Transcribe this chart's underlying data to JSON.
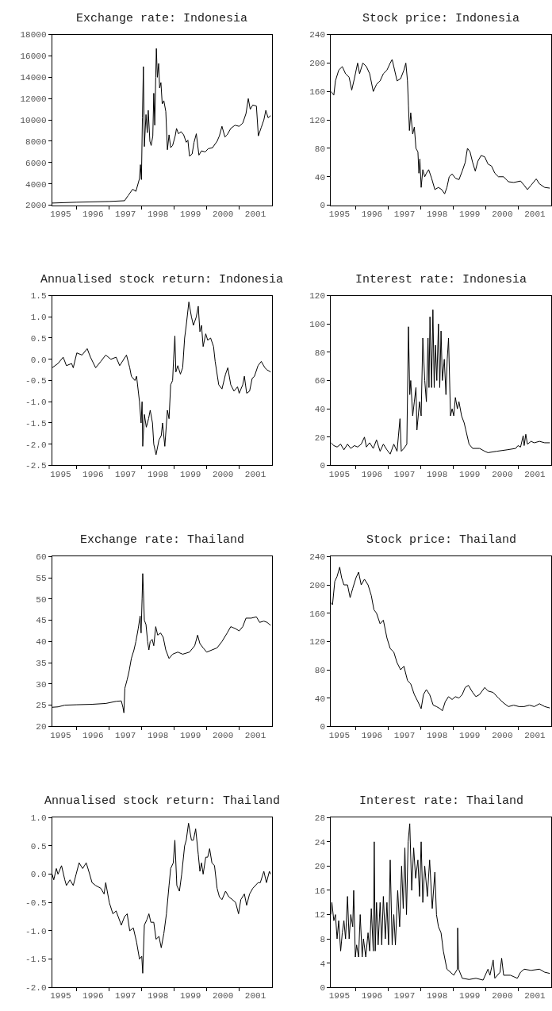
{
  "chart_data": [
    {
      "type": "line",
      "title": "Exchange rate: Indonesia",
      "xlim": [
        1995.24,
        2002.0
      ],
      "ylim": [
        2000,
        18000
      ],
      "yticks": [
        2000,
        4000,
        6000,
        8000,
        10000,
        12000,
        14000,
        16000,
        18000
      ],
      "xticks": [
        {
          "value": 1995.5,
          "label": "1995"
        },
        {
          "value": 1996.5,
          "label": "1996"
        },
        {
          "value": 1997.5,
          "label": "1997"
        },
        {
          "value": 1998.5,
          "label": "1998"
        },
        {
          "value": 1999.5,
          "label": "1999"
        },
        {
          "value": 2000.5,
          "label": "2000"
        },
        {
          "value": 2001.5,
          "label": "2001"
        },
        {
          "value": 1996,
          "label": null
        },
        {
          "value": 1997,
          "label": null
        },
        {
          "value": 1998,
          "label": null
        },
        {
          "value": 1999,
          "label": null
        },
        {
          "value": 2000,
          "label": null
        },
        {
          "value": 2001,
          "label": null
        }
      ],
      "x": [
        1995.24,
        1996.0,
        1997.0,
        1997.47,
        1997.58,
        1997.72,
        1997.82,
        1997.93,
        1997.96,
        1997.99,
        1998.02,
        1998.05,
        1998.08,
        1998.13,
        1998.17,
        1998.2,
        1998.25,
        1998.29,
        1998.34,
        1998.37,
        1998.4,
        1998.43,
        1998.45,
        1998.48,
        1998.52,
        1998.55,
        1998.59,
        1998.63,
        1998.68,
        1998.74,
        1998.79,
        1998.84,
        1998.89,
        1998.95,
        1999.03,
        1999.07,
        1999.13,
        1999.21,
        1999.29,
        1999.37,
        1999.42,
        1999.47,
        1999.55,
        1999.61,
        1999.68,
        1999.76,
        1999.84,
        1999.95,
        2000.05,
        2000.18,
        2000.32,
        2000.39,
        2000.47,
        2000.56,
        2000.63,
        2000.74,
        2000.87,
        2001.0,
        2001.11,
        2001.21,
        2001.28,
        2001.34,
        2001.42,
        2001.53,
        2001.59,
        2001.68,
        2001.76,
        2001.82,
        2001.89,
        2001.97
      ],
      "series": [
        {
          "color": "#000000",
          "values": [
            2200,
            2280,
            2350,
            2420,
            2900,
            3500,
            3300,
            4500,
            5800,
            4400,
            10200,
            15000,
            7500,
            10500,
            8800,
            10900,
            8000,
            7600,
            8500,
            12500,
            9500,
            14000,
            16700,
            14000,
            15300,
            13000,
            13500,
            11500,
            11800,
            10800,
            7200,
            8600,
            7400,
            7600,
            8500,
            9200,
            8700,
            8900,
            8600,
            7900,
            8100,
            6600,
            6800,
            7900,
            8700,
            6700,
            7100,
            7000,
            7300,
            7400,
            8000,
            8500,
            9400,
            8400,
            8600,
            9200,
            9500,
            9400,
            9700,
            10600,
            12000,
            11000,
            11400,
            11300,
            8500,
            9300,
            10000,
            10900,
            10200,
            10400
          ]
        }
      ]
    },
    {
      "type": "line",
      "title": "Stock price: Indonesia",
      "xlim": [
        1995.24,
        2002.0
      ],
      "ylim": [
        0,
        240
      ],
      "yticks": [
        0,
        40,
        80,
        120,
        160,
        200,
        240
      ],
      "xticks": [
        {
          "value": 1995.5,
          "label": "1995"
        },
        {
          "value": 1996.5,
          "label": "1996"
        },
        {
          "value": 1997.5,
          "label": "1997"
        },
        {
          "value": 1998.5,
          "label": "1998"
        },
        {
          "value": 1999.5,
          "label": "1999"
        },
        {
          "value": 2000.5,
          "label": "2000"
        },
        {
          "value": 2001.5,
          "label": "2001"
        },
        {
          "value": 1996,
          "label": null
        },
        {
          "value": 1997,
          "label": null
        },
        {
          "value": 1998,
          "label": null
        },
        {
          "value": 1999,
          "label": null
        },
        {
          "value": 2000,
          "label": null
        },
        {
          "value": 2001,
          "label": null
        }
      ],
      "x": [
        1995.24,
        1995.33,
        1995.38,
        1995.48,
        1995.59,
        1995.69,
        1995.8,
        1995.88,
        1995.96,
        1996.06,
        1996.12,
        1996.22,
        1996.33,
        1996.43,
        1996.54,
        1996.64,
        1996.75,
        1996.85,
        1996.96,
        1997.06,
        1997.12,
        1997.17,
        1997.27,
        1997.38,
        1997.48,
        1997.54,
        1997.59,
        1997.62,
        1997.65,
        1997.69,
        1997.75,
        1997.8,
        1997.85,
        1997.91,
        1997.94,
        1997.97,
        1998.01,
        1998.06,
        1998.12,
        1998.17,
        1998.24,
        1998.33,
        1998.43,
        1998.54,
        1998.64,
        1998.73,
        1998.8,
        1998.87,
        1998.96,
        1999.06,
        1999.17,
        1999.27,
        1999.36,
        1999.43,
        1999.51,
        1999.59,
        1999.67,
        1999.75,
        1999.85,
        1999.96,
        2000.06,
        2000.17,
        2000.27,
        2000.38,
        2000.54,
        2000.69,
        2000.85,
        2001.06,
        2001.17,
        2001.27,
        2001.38,
        2001.54,
        2001.64,
        2001.8,
        2001.96
      ],
      "series": [
        {
          "color": "#000000",
          "values": [
            160,
            155,
            175,
            190,
            195,
            185,
            180,
            162,
            178,
            200,
            185,
            200,
            195,
            185,
            160,
            170,
            175,
            185,
            190,
            200,
            205,
            195,
            175,
            178,
            190,
            200,
            175,
            140,
            105,
            130,
            100,
            110,
            80,
            75,
            45,
            65,
            25,
            50,
            40,
            45,
            50,
            38,
            22,
            25,
            22,
            16,
            25,
            40,
            44,
            38,
            36,
            48,
            60,
            80,
            75,
            60,
            48,
            62,
            70,
            68,
            58,
            55,
            45,
            40,
            40,
            33,
            32,
            34,
            28,
            22,
            28,
            37,
            30,
            25,
            24
          ]
        }
      ]
    },
    {
      "type": "line",
      "title": "Annualised stock return: Indonesia",
      "xlim": [
        1995.24,
        2002.0
      ],
      "ylim": [
        -2.5,
        1.5
      ],
      "yticks": [
        {
          "value": -2.5,
          "label": "-2.5"
        },
        {
          "value": -2.0,
          "label": "-2.0"
        },
        {
          "value": -1.5,
          "label": "-1.5"
        },
        {
          "value": -1.0,
          "label": "-1.0"
        },
        {
          "value": -0.5,
          "label": "-0.5"
        },
        {
          "value": 0,
          "label": "0.0"
        },
        {
          "value": 0.5,
          "label": "0.5"
        },
        {
          "value": 1.0,
          "label": "1.0"
        },
        {
          "value": 1.5,
          "label": "1.5"
        }
      ],
      "xticks": [
        {
          "value": 1995.5,
          "label": "1995"
        },
        {
          "value": 1996.5,
          "label": "1996"
        },
        {
          "value": 1997.5,
          "label": "1997"
        },
        {
          "value": 1998.5,
          "label": "1998"
        },
        {
          "value": 1999.5,
          "label": "1999"
        },
        {
          "value": 2000.5,
          "label": "2000"
        },
        {
          "value": 2001.5,
          "label": "2001"
        },
        {
          "value": 1996,
          "label": null
        },
        {
          "value": 1997,
          "label": null
        },
        {
          "value": 1998,
          "label": null
        },
        {
          "value": 1999,
          "label": null
        },
        {
          "value": 2000,
          "label": null
        },
        {
          "value": 2001,
          "label": null
        }
      ],
      "x": [
        1995.24,
        1995.42,
        1995.58,
        1995.68,
        1995.84,
        1995.89,
        1996.0,
        1996.16,
        1996.32,
        1996.42,
        1996.58,
        1996.74,
        1996.89,
        1997.05,
        1997.21,
        1997.32,
        1997.53,
        1997.63,
        1997.68,
        1997.79,
        1997.84,
        1997.93,
        1997.98,
        1998.01,
        1998.03,
        1998.08,
        1998.14,
        1998.21,
        1998.26,
        1998.33,
        1998.37,
        1998.44,
        1998.53,
        1998.6,
        1998.64,
        1998.71,
        1998.79,
        1998.84,
        1998.89,
        1998.95,
        1998.98,
        1999.02,
        1999.05,
        1999.11,
        1999.19,
        1999.26,
        1999.32,
        1999.37,
        1999.45,
        1999.53,
        1999.59,
        1999.68,
        1999.74,
        1999.79,
        1999.84,
        1999.89,
        1999.97,
        2000.03,
        2000.12,
        2000.21,
        2000.26,
        2000.37,
        2000.47,
        2000.58,
        2000.65,
        2000.74,
        2000.84,
        2000.95,
        2001.0,
        2001.11,
        2001.16,
        2001.23,
        2001.32,
        2001.4,
        2001.47,
        2001.58,
        2001.68,
        2001.79,
        2001.86,
        2001.97
      ],
      "series": [
        {
          "color": "#000000",
          "values": [
            -0.2,
            -0.1,
            0.05,
            -0.15,
            -0.1,
            -0.2,
            0.15,
            0.1,
            0.25,
            0.05,
            -0.2,
            -0.05,
            0.1,
            0.0,
            0.05,
            -0.15,
            0.1,
            -0.2,
            -0.4,
            -0.5,
            -0.4,
            -1.0,
            -1.5,
            -1.0,
            -2.05,
            -1.3,
            -1.6,
            -1.4,
            -1.2,
            -1.5,
            -2.0,
            -2.25,
            -1.9,
            -1.8,
            -1.5,
            -2.05,
            -1.2,
            -1.4,
            -0.6,
            -0.5,
            0.0,
            0.55,
            -0.3,
            -0.15,
            -0.35,
            -0.2,
            0.5,
            0.8,
            1.35,
            1.0,
            0.8,
            1.0,
            1.25,
            0.65,
            0.8,
            0.3,
            0.6,
            0.45,
            0.5,
            0.3,
            -0.05,
            -0.6,
            -0.7,
            -0.35,
            -0.2,
            -0.6,
            -0.75,
            -0.65,
            -0.8,
            -0.6,
            -0.4,
            -0.8,
            -0.75,
            -0.45,
            -0.4,
            -0.15,
            -0.05,
            -0.2,
            -0.25,
            -0.3
          ]
        }
      ]
    },
    {
      "type": "line",
      "title": "Interest rate: Indonesia",
      "xlim": [
        1995.24,
        2002.0
      ],
      "ylim": [
        0,
        120
      ],
      "yticks": [
        0,
        20,
        40,
        60,
        80,
        100,
        120
      ],
      "xticks": [
        {
          "value": 1995.5,
          "label": "1995"
        },
        {
          "value": 1996.5,
          "label": "1996"
        },
        {
          "value": 1997.5,
          "label": "1997"
        },
        {
          "value": 1998.5,
          "label": "1998"
        },
        {
          "value": 1999.5,
          "label": "1999"
        },
        {
          "value": 2000.5,
          "label": "2000"
        },
        {
          "value": 2001.5,
          "label": "2001"
        },
        {
          "value": 1996,
          "label": null
        },
        {
          "value": 1997,
          "label": null
        },
        {
          "value": 1998,
          "label": null
        },
        {
          "value": 1999,
          "label": null
        },
        {
          "value": 2000,
          "label": null
        },
        {
          "value": 2001,
          "label": null
        }
      ],
      "x": [
        1995.24,
        1995.33,
        1995.43,
        1995.54,
        1995.64,
        1995.75,
        1995.85,
        1995.96,
        1996.06,
        1996.17,
        1996.27,
        1996.33,
        1996.43,
        1996.54,
        1996.64,
        1996.75,
        1996.85,
        1996.96,
        1997.06,
        1997.17,
        1997.27,
        1997.36,
        1997.4,
        1997.48,
        1997.57,
        1997.62,
        1997.66,
        1997.69,
        1997.75,
        1997.8,
        1997.85,
        1997.88,
        1997.96,
        1998.01,
        1998.06,
        1998.12,
        1998.17,
        1998.22,
        1998.25,
        1998.28,
        1998.33,
        1998.37,
        1998.41,
        1998.45,
        1998.49,
        1998.54,
        1998.58,
        1998.62,
        1998.66,
        1998.72,
        1998.77,
        1998.81,
        1998.85,
        1998.91,
        1998.96,
        1999.01,
        1999.06,
        1999.12,
        1999.17,
        1999.25,
        1999.33,
        1999.38,
        1999.48,
        1999.59,
        1999.8,
        1999.96,
        2000.06,
        2000.33,
        2000.64,
        2000.91,
        2000.98,
        2001.06,
        2001.14,
        2001.17,
        2001.22,
        2001.27,
        2001.38,
        2001.48,
        2001.64,
        2001.8,
        2001.96
      ],
      "series": [
        {
          "color": "#000000",
          "values": [
            16,
            14,
            13,
            15,
            11,
            15,
            12,
            14,
            13,
            15,
            20,
            13,
            16,
            12,
            18,
            10,
            15,
            11,
            8,
            15,
            10,
            33,
            10,
            12,
            15,
            98,
            50,
            60,
            35,
            45,
            55,
            25,
            45,
            35,
            90,
            60,
            45,
            90,
            55,
            105,
            55,
            110,
            55,
            85,
            60,
            100,
            55,
            95,
            60,
            75,
            50,
            75,
            90,
            35,
            40,
            35,
            48,
            40,
            45,
            35,
            30,
            25,
            15,
            12,
            12,
            10,
            9,
            10,
            11,
            12,
            14,
            13,
            21,
            14,
            22,
            15,
            17,
            16,
            17,
            16,
            16
          ]
        }
      ]
    },
    {
      "type": "line",
      "title": "Exchange rate: Thailand",
      "xlim": [
        1995.24,
        2002.0
      ],
      "ylim": [
        20,
        60
      ],
      "yticks": [
        20,
        25,
        30,
        35,
        40,
        45,
        50,
        55,
        60
      ],
      "xticks": [
        {
          "value": 1995.5,
          "label": "1995"
        },
        {
          "value": 1996.5,
          "label": "1996"
        },
        {
          "value": 1997.5,
          "label": "1997"
        },
        {
          "value": 1998.5,
          "label": "1998"
        },
        {
          "value": 1999.5,
          "label": "1999"
        },
        {
          "value": 2000.5,
          "label": "2000"
        },
        {
          "value": 2001.5,
          "label": "2001"
        },
        {
          "value": 1996,
          "label": null
        },
        {
          "value": 1997,
          "label": null
        },
        {
          "value": 1998,
          "label": null
        },
        {
          "value": 1999,
          "label": null
        },
        {
          "value": 2000,
          "label": null
        },
        {
          "value": 2001,
          "label": null
        }
      ],
      "x": [
        1995.24,
        1995.42,
        1995.63,
        1996.0,
        1996.47,
        1996.89,
        1997.21,
        1997.37,
        1997.42,
        1997.45,
        1997.48,
        1997.55,
        1997.61,
        1997.68,
        1997.76,
        1997.82,
        1997.89,
        1997.95,
        1997.98,
        1998.01,
        1998.03,
        1998.05,
        1998.08,
        1998.13,
        1998.18,
        1998.22,
        1998.26,
        1998.32,
        1998.37,
        1998.43,
        1998.49,
        1998.58,
        1998.66,
        1998.74,
        1998.84,
        1998.95,
        1999.11,
        1999.26,
        1999.47,
        1999.63,
        1999.72,
        1999.79,
        1999.89,
        2000.0,
        2000.16,
        2000.32,
        2000.47,
        2000.63,
        2000.74,
        2000.89,
        2001.0,
        2001.11,
        2001.21,
        2001.37,
        2001.53,
        2001.63,
        2001.76,
        2001.86,
        2001.97
      ],
      "series": [
        {
          "color": "#000000",
          "values": [
            24.5,
            24.6,
            25.0,
            25.1,
            25.2,
            25.4,
            25.9,
            26.0,
            24.5,
            23.2,
            29,
            31,
            33,
            36,
            38,
            40,
            43,
            46,
            42,
            50,
            56,
            52,
            45,
            44,
            40,
            38,
            40,
            40.5,
            39,
            43.5,
            41.5,
            42,
            41,
            38,
            36,
            37,
            37.5,
            37,
            37.5,
            39,
            41.5,
            39.5,
            38.5,
            37.5,
            38,
            38.5,
            40,
            42,
            43.5,
            43,
            42.5,
            43.5,
            45.5,
            45.5,
            45.8,
            44.5,
            44.8,
            44.5,
            43.8
          ]
        }
      ]
    },
    {
      "type": "line",
      "title": "Stock price: Thailand",
      "xlim": [
        1995.24,
        2002.0
      ],
      "ylim": [
        0,
        240
      ],
      "yticks": [
        0,
        40,
        80,
        120,
        160,
        200,
        240
      ],
      "xticks": [
        {
          "value": 1995.5,
          "label": "1995"
        },
        {
          "value": 1996.5,
          "label": "1996"
        },
        {
          "value": 1997.5,
          "label": "1997"
        },
        {
          "value": 1998.5,
          "label": "1998"
        },
        {
          "value": 1999.5,
          "label": "1999"
        },
        {
          "value": 2000.5,
          "label": "2000"
        },
        {
          "value": 2001.5,
          "label": "2001"
        },
        {
          "value": 1996,
          "label": null
        },
        {
          "value": 1997,
          "label": null
        },
        {
          "value": 1998,
          "label": null
        },
        {
          "value": 1999,
          "label": null
        },
        {
          "value": 2000,
          "label": null
        },
        {
          "value": 2001,
          "label": null
        }
      ],
      "x": [
        1995.24,
        1995.29,
        1995.36,
        1995.43,
        1995.51,
        1995.57,
        1995.64,
        1995.75,
        1995.83,
        1995.91,
        1996.01,
        1996.09,
        1996.17,
        1996.27,
        1996.38,
        1996.48,
        1996.56,
        1996.64,
        1996.75,
        1996.85,
        1996.96,
        1997.06,
        1997.17,
        1997.27,
        1997.38,
        1997.48,
        1997.59,
        1997.69,
        1997.8,
        1997.91,
        1998.01,
        1998.08,
        1998.17,
        1998.27,
        1998.38,
        1998.48,
        1998.59,
        1998.66,
        1998.75,
        1998.85,
        1998.96,
        1999.06,
        1999.17,
        1999.27,
        1999.36,
        1999.46,
        1999.59,
        1999.69,
        1999.8,
        1999.96,
        2000.06,
        2000.22,
        2000.38,
        2000.54,
        2000.69,
        2000.85,
        2001.01,
        2001.17,
        2001.33,
        2001.48,
        2001.64,
        2001.8,
        2001.96
      ],
      "series": [
        {
          "color": "#000000",
          "values": [
            175,
            172,
            205,
            212,
            225,
            210,
            200,
            200,
            182,
            195,
            210,
            218,
            200,
            208,
            200,
            185,
            165,
            160,
            145,
            150,
            125,
            110,
            105,
            90,
            80,
            85,
            65,
            60,
            45,
            35,
            25,
            45,
            52,
            45,
            30,
            28,
            25,
            22,
            35,
            42,
            38,
            42,
            40,
            45,
            55,
            58,
            48,
            42,
            45,
            55,
            50,
            48,
            40,
            33,
            28,
            30,
            28,
            28,
            30,
            28,
            32,
            28,
            26
          ]
        }
      ]
    },
    {
      "type": "line",
      "title": "Annualised stock return: Thailand",
      "xlim": [
        1995.24,
        2002.0
      ],
      "ylim": [
        -2.0,
        1.0
      ],
      "yticks": [
        {
          "value": -2.0,
          "label": "-2.0"
        },
        {
          "value": -1.5,
          "label": "-1.5"
        },
        {
          "value": -1.0,
          "label": "-1.0"
        },
        {
          "value": -0.5,
          "label": "-0.5"
        },
        {
          "value": 0,
          "label": "0.0"
        },
        {
          "value": 0.5,
          "label": "0.5"
        },
        {
          "value": 1.0,
          "label": "1.0"
        }
      ],
      "xticks": [
        {
          "value": 1995.5,
          "label": "1995"
        },
        {
          "value": 1996.5,
          "label": "1996"
        },
        {
          "value": 1997.5,
          "label": "1997"
        },
        {
          "value": 1998.5,
          "label": "1998"
        },
        {
          "value": 1999.5,
          "label": "1999"
        },
        {
          "value": 2000.5,
          "label": "2000"
        },
        {
          "value": 2001.5,
          "label": "2001"
        },
        {
          "value": 1996,
          "label": null
        },
        {
          "value": 1997,
          "label": null
        },
        {
          "value": 1998,
          "label": null
        },
        {
          "value": 1999,
          "label": null
        },
        {
          "value": 2000,
          "label": null
        },
        {
          "value": 2001,
          "label": null
        }
      ],
      "x": [
        1995.24,
        1995.29,
        1995.37,
        1995.42,
        1995.53,
        1995.63,
        1995.68,
        1995.79,
        1995.89,
        1995.98,
        1996.07,
        1996.18,
        1996.29,
        1996.37,
        1996.47,
        1996.58,
        1996.74,
        1996.84,
        1996.89,
        1997.0,
        1997.11,
        1997.21,
        1997.37,
        1997.47,
        1997.55,
        1997.63,
        1997.74,
        1997.84,
        1997.93,
        1998.0,
        1998.03,
        1998.08,
        1998.16,
        1998.22,
        1998.28,
        1998.37,
        1998.44,
        1998.53,
        1998.6,
        1998.68,
        1998.76,
        1998.84,
        1998.89,
        1998.97,
        1999.02,
        1999.08,
        1999.16,
        1999.23,
        1999.32,
        1999.37,
        1999.44,
        1999.53,
        1999.59,
        1999.66,
        1999.74,
        1999.79,
        1999.84,
        1999.89,
        1999.97,
        2000.03,
        2000.09,
        2000.16,
        2000.24,
        2000.32,
        2000.39,
        2000.47,
        2000.58,
        2000.68,
        2000.79,
        2000.89,
        2000.98,
        2001.05,
        2001.16,
        2001.23,
        2001.32,
        2001.42,
        2001.58,
        2001.65,
        2001.76,
        2001.84,
        2001.93,
        2001.97
      ],
      "series": [
        {
          "color": "#000000",
          "values": [
            0.0,
            -0.1,
            0.1,
            0.0,
            0.15,
            -0.1,
            -0.2,
            -0.1,
            -0.2,
            0.0,
            0.2,
            0.1,
            0.2,
            0.05,
            -0.15,
            -0.2,
            -0.25,
            -0.35,
            -0.15,
            -0.5,
            -0.7,
            -0.65,
            -0.9,
            -0.75,
            -0.7,
            -1.0,
            -0.95,
            -1.2,
            -1.5,
            -1.45,
            -1.75,
            -0.9,
            -0.8,
            -0.7,
            -0.85,
            -0.85,
            -1.15,
            -1.1,
            -1.3,
            -1.05,
            -0.7,
            -0.2,
            0.1,
            0.2,
            0.6,
            -0.2,
            -0.3,
            0.0,
            0.5,
            0.6,
            0.9,
            0.6,
            0.6,
            0.8,
            0.35,
            0.05,
            0.2,
            0.0,
            0.3,
            0.3,
            0.45,
            0.2,
            0.15,
            -0.25,
            -0.4,
            -0.45,
            -0.3,
            -0.4,
            -0.45,
            -0.5,
            -0.7,
            -0.45,
            -0.35,
            -0.55,
            -0.35,
            -0.25,
            -0.15,
            -0.15,
            0.05,
            -0.15,
            0.05,
            0.0
          ]
        }
      ]
    },
    {
      "type": "line",
      "title": "Interest rate: Thailand",
      "xlim": [
        1995.24,
        2002.0
      ],
      "ylim": [
        0,
        28
      ],
      "yticks": [
        0,
        4,
        8,
        12,
        16,
        20,
        24,
        28
      ],
      "xticks": [
        {
          "value": 1995.5,
          "label": "1995"
        },
        {
          "value": 1996.5,
          "label": "1996"
        },
        {
          "value": 1997.5,
          "label": "1997"
        },
        {
          "value": 1998.5,
          "label": "1998"
        },
        {
          "value": 1999.5,
          "label": "1999"
        },
        {
          "value": 2000.5,
          "label": "2000"
        },
        {
          "value": 2001.5,
          "label": "2001"
        },
        {
          "value": 1996,
          "label": null
        },
        {
          "value": 1997,
          "label": null
        },
        {
          "value": 1998,
          "label": null
        },
        {
          "value": 1999,
          "label": null
        },
        {
          "value": 2000,
          "label": null
        },
        {
          "value": 2001,
          "label": null
        }
      ],
      "x": [
        1995.24,
        1995.27,
        1995.33,
        1995.38,
        1995.43,
        1995.48,
        1995.54,
        1995.59,
        1995.64,
        1995.69,
        1995.75,
        1995.8,
        1995.85,
        1995.91,
        1995.94,
        1995.99,
        1996.03,
        1996.09,
        1996.14,
        1996.2,
        1996.24,
        1996.31,
        1996.38,
        1996.43,
        1996.48,
        1996.54,
        1996.57,
        1996.6,
        1996.64,
        1996.69,
        1996.75,
        1996.8,
        1996.85,
        1996.91,
        1996.96,
        1997.01,
        1997.06,
        1997.12,
        1997.17,
        1997.22,
        1997.29,
        1997.35,
        1997.41,
        1997.46,
        1997.51,
        1997.56,
        1997.61,
        1997.66,
        1997.72,
        1997.78,
        1997.84,
        1997.91,
        1997.96,
        1998.01,
        1998.06,
        1998.12,
        1998.2,
        1998.27,
        1998.35,
        1998.43,
        1998.48,
        1998.54,
        1998.62,
        1998.69,
        1998.8,
        1998.91,
        1999.01,
        1999.12,
        1999.13,
        1999.16,
        1999.27,
        1999.48,
        1999.69,
        1999.91,
        2000.06,
        2000.12,
        2000.22,
        2000.27,
        2000.43,
        2000.48,
        2000.54,
        2000.75,
        2000.96,
        2001.06,
        2001.17,
        2001.38,
        2001.64,
        2001.8,
        2001.96
      ],
      "series": [
        {
          "color": "#000000",
          "values": [
            12,
            14,
            11,
            12,
            8,
            11,
            6,
            9,
            11,
            8,
            15,
            8,
            12,
            10,
            16,
            5,
            7,
            5,
            12,
            5,
            8,
            5,
            9,
            6,
            13,
            6,
            24,
            6,
            14,
            7,
            14,
            7,
            15,
            8,
            14,
            7,
            21,
            7,
            12,
            7,
            16,
            10,
            20,
            13,
            23,
            12,
            24,
            27,
            16,
            23,
            18,
            21,
            15,
            24,
            14,
            20,
            15,
            21,
            13,
            19,
            12,
            10,
            9,
            6,
            3,
            2.5,
            2.0,
            3,
            9.8,
            3,
            1.5,
            1.3,
            1.5,
            1.2,
            3,
            2,
            4.5,
            1.5,
            2.5,
            4.8,
            2,
            2,
            1.5,
            2.5,
            3,
            2.8,
            3,
            2.5,
            2.3
          ]
        }
      ]
    }
  ]
}
